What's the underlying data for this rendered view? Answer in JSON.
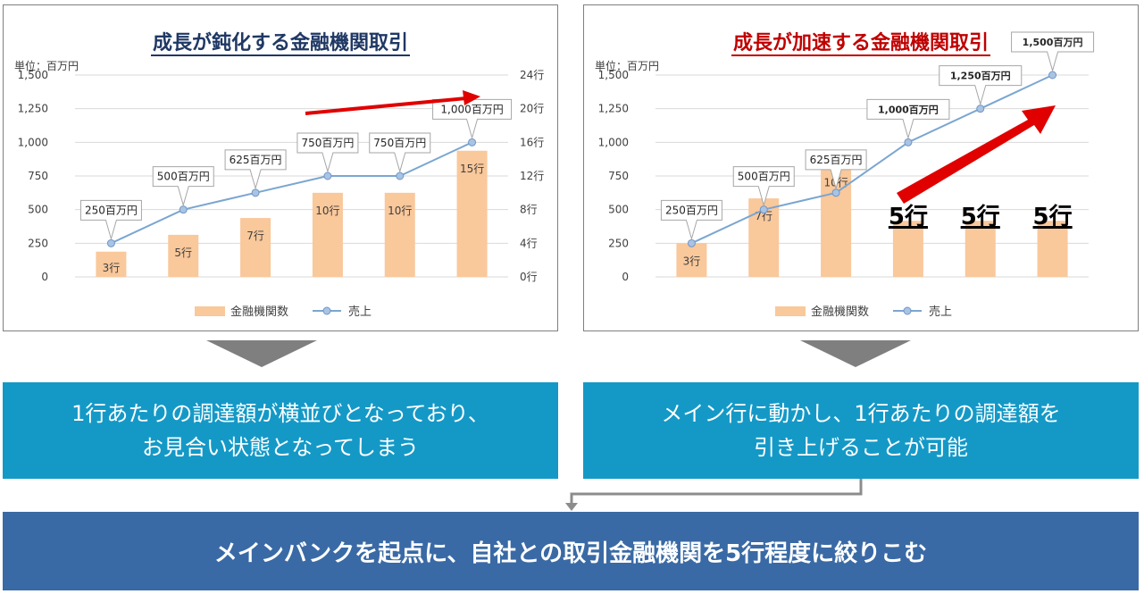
{
  "chart_data": [
    {
      "type": "bar+line",
      "title": "成長が鈍化する金融機関取引",
      "unit_label": "単位：百万円",
      "left_axis_ticks": [
        "1,500",
        "1,250",
        "1,000",
        "750",
        "500",
        "250",
        "0"
      ],
      "right_axis_ticks": [
        "24行",
        "20行",
        "16行",
        "12行",
        "8行",
        "4行",
        "0行"
      ],
      "ylim_left": [
        0,
        1500
      ],
      "ylim_right": [
        0,
        24
      ],
      "bar_values": [
        3,
        5,
        7,
        10,
        10,
        15
      ],
      "bar_labels": [
        "3行",
        "5行",
        "7行",
        "10行",
        "10行",
        "15行"
      ],
      "line_values": [
        250,
        500,
        625,
        750,
        750,
        1000
      ],
      "line_labels": [
        "250百万円",
        "500百万円",
        "625百万円",
        "750百万円",
        "750百万円",
        "1,000百万円"
      ],
      "legend": [
        "金融機関数",
        "売上"
      ],
      "legend_position": "bottom",
      "annotation_arrow": "shallow-up",
      "bar_color": "#f9c89b",
      "line_color": "#7aa6d1"
    },
    {
      "type": "bar+line",
      "title": "成長が加速する金融機関取引",
      "unit_label": "単位：百万円",
      "left_axis_ticks": [
        "1,500",
        "1,250",
        "1,000",
        "750",
        "500",
        "250",
        "0"
      ],
      "ylim_left": [
        0,
        1500
      ],
      "bar_values": [
        3,
        7,
        10,
        5,
        5,
        5
      ],
      "bar_labels": [
        "3行",
        "7行",
        "10行",
        "5行",
        "5行",
        "5行"
      ],
      "line_values": [
        250,
        500,
        625,
        1000,
        1250,
        1500
      ],
      "line_labels": [
        "250百万円",
        "500百万円",
        "625百万円",
        "1,000百万円",
        "1,250百万円",
        "1,500百万円"
      ],
      "legend": [
        "金融機関数",
        "売上"
      ],
      "legend_position": "bottom",
      "annotation_arrow": "steep-up",
      "bar_color": "#f9c89b",
      "line_color": "#7aa6d1"
    }
  ],
  "boxes": {
    "left_line1": "1行あたりの調達額が横並びとなっており、",
    "left_line2": "お見合い状態となってしまう",
    "right_line1": "メイン行に動かし、1行あたりの調達額を",
    "right_line2": "引き上げることが可能"
  },
  "bottom_message": "メインバンクを起点に、自社との取引金融機関を5行程度に絞りこむ",
  "colors": {
    "box": "#1499c7",
    "bottom_bar": "#3a6aa5",
    "arrow_red": "#e00000",
    "title_left": "#1f3864",
    "title_right": "#c00000"
  }
}
